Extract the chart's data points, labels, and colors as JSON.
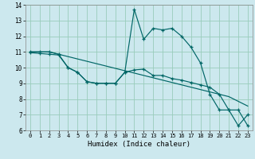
{
  "xlabel": "Humidex (Indice chaleur)",
  "bg_color": "#cce8ee",
  "grid_color": "#99ccbb",
  "line_color": "#006666",
  "xlim": [
    -0.5,
    23.5
  ],
  "ylim": [
    6,
    14
  ],
  "xticks": [
    0,
    1,
    2,
    3,
    4,
    5,
    6,
    7,
    8,
    9,
    10,
    11,
    12,
    13,
    14,
    15,
    16,
    17,
    18,
    19,
    20,
    21,
    22,
    23
  ],
  "yticks": [
    6,
    7,
    8,
    9,
    10,
    11,
    12,
    13,
    14
  ],
  "line1_x": [
    0,
    1,
    2,
    3,
    4,
    5,
    6,
    7,
    8,
    9,
    10,
    11,
    12,
    13,
    14,
    15,
    16,
    17,
    18,
    19,
    20,
    21,
    22,
    23
  ],
  "line1_y": [
    11.0,
    11.0,
    11.0,
    10.85,
    10.7,
    10.55,
    10.4,
    10.25,
    10.1,
    9.95,
    9.8,
    9.65,
    9.5,
    9.35,
    9.2,
    9.05,
    8.9,
    8.75,
    8.6,
    8.45,
    8.3,
    8.15,
    7.85,
    7.55
  ],
  "line2_x": [
    0,
    1,
    2,
    3,
    4,
    5,
    6,
    7,
    8,
    9,
    10,
    11,
    12,
    13,
    14,
    15,
    16,
    17,
    18,
    19,
    20,
    21,
    22,
    23
  ],
  "line2_y": [
    10.95,
    10.9,
    10.85,
    10.8,
    10.0,
    9.7,
    9.1,
    9.0,
    9.0,
    9.0,
    9.7,
    9.85,
    9.9,
    9.5,
    9.5,
    9.3,
    9.2,
    9.05,
    8.9,
    8.75,
    8.3,
    7.3,
    7.3,
    6.3
  ],
  "line3_x": [
    0,
    1,
    2,
    3,
    4,
    5,
    6,
    7,
    8,
    9,
    10,
    11,
    12,
    13,
    14,
    15,
    16,
    17,
    18,
    19,
    20,
    21,
    22,
    23
  ],
  "line3_y": [
    11.0,
    11.0,
    11.0,
    10.85,
    10.0,
    9.7,
    9.1,
    9.0,
    9.0,
    9.0,
    9.7,
    13.7,
    11.8,
    12.5,
    12.4,
    12.5,
    12.0,
    11.3,
    10.3,
    8.3,
    7.3,
    7.3,
    6.3,
    7.0
  ]
}
